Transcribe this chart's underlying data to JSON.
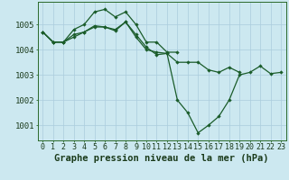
{
  "title": "Graphe pression niveau de la mer (hPa)",
  "background_color": "#cce8f0",
  "grid_color": "#aaccdd",
  "line_color": "#1a5c2a",
  "x_labels": [
    "0",
    "1",
    "2",
    "3",
    "4",
    "5",
    "6",
    "7",
    "8",
    "9",
    "10",
    "11",
    "12",
    "13",
    "14",
    "15",
    "16",
    "17",
    "18",
    "19",
    "20",
    "21",
    "22",
    "23"
  ],
  "ylim": [
    1000.4,
    1005.9
  ],
  "yticks": [
    1001,
    1002,
    1003,
    1004,
    1005
  ],
  "series1": [
    1004.7,
    1004.3,
    1004.3,
    1004.8,
    1005.0,
    1005.5,
    1005.6,
    1005.3,
    1005.5,
    1005.0,
    1004.3,
    1004.3,
    1003.9,
    1003.9,
    null,
    null,
    null,
    null,
    null,
    null,
    null,
    null,
    null,
    null
  ],
  "series2": [
    1004.7,
    1004.3,
    1004.3,
    1004.6,
    1004.7,
    1004.9,
    1004.9,
    1004.8,
    1005.1,
    1004.6,
    1004.1,
    1003.8,
    1003.85,
    1003.5,
    1003.5,
    1003.5,
    1003.2,
    1003.1,
    1003.3,
    1003.1,
    null,
    null,
    null,
    null
  ],
  "series3": [
    1004.7,
    1004.3,
    1004.3,
    1004.5,
    1004.7,
    1004.95,
    1004.9,
    1004.75,
    1005.1,
    1004.5,
    1004.0,
    1003.9,
    1003.85,
    1002.0,
    1001.5,
    1000.7,
    1001.0,
    1001.35,
    1002.0,
    1003.0,
    1003.1,
    1003.35,
    1003.05,
    1003.1
  ],
  "tick_fontsize": 6,
  "label_fontsize": 7.5
}
